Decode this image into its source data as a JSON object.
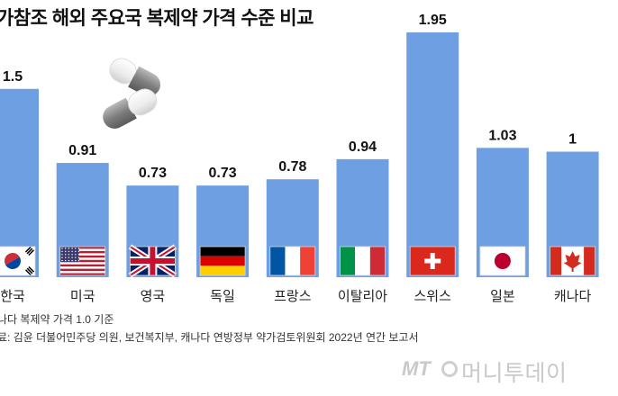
{
  "chart_data": {
    "type": "bar",
    "title": "가참조 해외 주요국 복제약 가격 수준 비교",
    "categories": [
      "한국",
      "미국",
      "영국",
      "독일",
      "프랑스",
      "이탈리아",
      "스위스",
      "일본",
      "캐나다"
    ],
    "values": [
      1.5,
      0.91,
      0.73,
      0.73,
      0.78,
      0.94,
      1.95,
      1.03,
      1
    ],
    "value_labels": [
      "1.5",
      "0.91",
      "0.73",
      "0.73",
      "0.78",
      "0.94",
      "1.95",
      "1.03",
      "1"
    ],
    "flags": [
      "korea-flag-icon",
      "usa-flag-icon",
      "uk-flag-icon",
      "germany-flag-icon",
      "france-flag-icon",
      "italy-flag-icon",
      "switzerland-flag-icon",
      "japan-flag-icon",
      "canada-flag-icon"
    ],
    "bar_color": "#6f9fe3",
    "ylim": [
      0,
      2.05
    ],
    "grid": false,
    "legend": "none"
  },
  "notes": {
    "line1": "나다 복제약 가격 1.0 기준",
    "line2": "료: 김윤 더불어민주당 의원, 보건복지부, 캐나다 연방정부 약가검토위원회 2022년 연간 보고서"
  },
  "watermark": {
    "mt": "MT",
    "name": "머니투데이"
  },
  "decor": {
    "pill_icon": "capsule-icon"
  }
}
